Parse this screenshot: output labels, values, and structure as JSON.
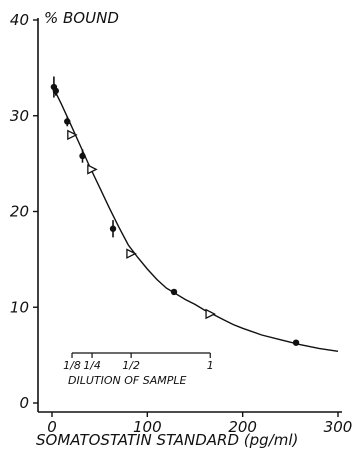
{
  "chart_data": {
    "type": "scatter",
    "title": "",
    "xlabel": "SOMATOSTATIN STANDARD (pg/ml)",
    "ylabel": "% BOUND",
    "xlim": [
      0,
      300
    ],
    "ylim": [
      0,
      40
    ],
    "x_ticks": [
      "0",
      "100",
      "200",
      "300"
    ],
    "y_ticks": [
      "0",
      "10",
      "20",
      "30",
      "40"
    ],
    "grid": false,
    "series": [
      {
        "marker": "filled-circle",
        "points": [
          {
            "x": 2,
            "y": 33.0,
            "err": 1.1
          },
          {
            "x": 4,
            "y": 32.6,
            "err": 0.5
          },
          {
            "x": 16,
            "y": 29.4,
            "err": 0.5
          },
          {
            "x": 32,
            "y": 25.8,
            "err": 0.7
          },
          {
            "x": 64,
            "y": 18.2,
            "err": 0.9
          },
          {
            "x": 128,
            "y": 11.6
          },
          {
            "x": 256,
            "y": 6.3
          }
        ]
      },
      {
        "marker": "open-triangle",
        "points": [
          {
            "x": 21,
            "y": 28.0
          },
          {
            "x": 42,
            "y": 24.4
          },
          {
            "x": 83,
            "y": 15.6
          },
          {
            "x": 166,
            "y": 9.3
          }
        ]
      }
    ],
    "fitted_curve": [
      [
        0,
        33.2
      ],
      [
        10,
        31.2
      ],
      [
        20,
        29.0
      ],
      [
        30,
        26.8
      ],
      [
        40,
        24.6
      ],
      [
        50,
        22.5
      ],
      [
        60,
        20.4
      ],
      [
        70,
        18.4
      ],
      [
        80,
        16.5
      ],
      [
        90,
        15.2
      ],
      [
        100,
        14.0
      ],
      [
        110,
        12.9
      ],
      [
        120,
        12.0
      ],
      [
        130,
        11.4
      ],
      [
        140,
        10.8
      ],
      [
        150,
        10.3
      ],
      [
        160,
        9.7
      ],
      [
        170,
        9.2
      ],
      [
        180,
        8.7
      ],
      [
        190,
        8.2
      ],
      [
        200,
        7.8
      ],
      [
        220,
        7.1
      ],
      [
        240,
        6.6
      ],
      [
        260,
        6.1
      ],
      [
        280,
        5.7
      ],
      [
        300,
        5.4
      ]
    ],
    "dilution_scale": {
      "label": "DILUTION OF SAMPLE",
      "ticks": [
        {
          "x": 21,
          "label": "1/8"
        },
        {
          "x": 42,
          "label": "1/4"
        },
        {
          "x": 83,
          "label": "1/2"
        },
        {
          "x": 166,
          "label": "1"
        }
      ]
    }
  }
}
